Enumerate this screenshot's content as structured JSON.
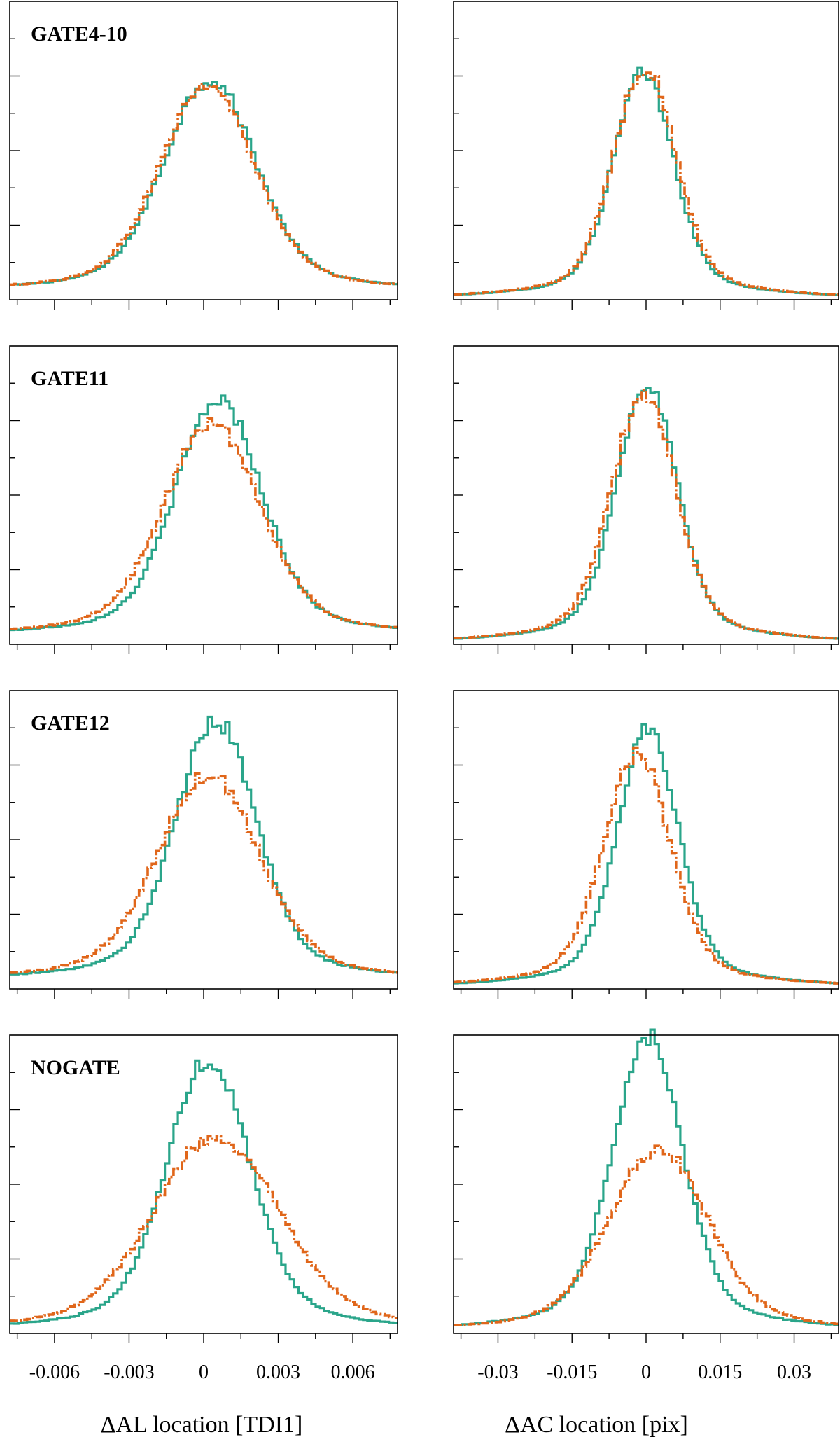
{
  "figure": {
    "xlabel_left": "ΔAL location [TDI1]",
    "xlabel_right": "ΔAC location [pix]",
    "colors": {
      "solid": "#2aa58a",
      "dashed": "#e0661a"
    }
  },
  "chart_data": [
    {
      "type": "line",
      "title": "GATE4-10",
      "column": "left",
      "xlim": [
        -0.0078,
        0.0078
      ],
      "ylim": [
        0,
        1.0
      ],
      "xticks": [
        -0.006,
        -0.003,
        0,
        0.003,
        0.006
      ],
      "xticklabels": [
        "-0.006",
        "-0.003",
        "0",
        "0.003",
        "0.006"
      ],
      "series": [
        {
          "name": "solid",
          "sigma": 0.00175,
          "mu": 0.00025,
          "peak": 0.72,
          "floor": 0.02
        },
        {
          "name": "dashed",
          "sigma": 0.0018,
          "mu": 0.00015,
          "peak": 0.7,
          "floor": 0.02
        }
      ]
    },
    {
      "type": "line",
      "title": "",
      "column": "right",
      "xlim": [
        -0.039,
        0.039
      ],
      "ylim": [
        0,
        1.0
      ],
      "xticks": [
        -0.03,
        -0.015,
        0,
        0.015,
        0.03
      ],
      "xticklabels": [
        "-0.03",
        "-0.015",
        "0",
        "0.015",
        "0.03"
      ],
      "series": [
        {
          "name": "solid",
          "sigma": 0.0058,
          "mu": -0.0005,
          "peak": 0.76,
          "floor": 0.0
        },
        {
          "name": "dashed",
          "sigma": 0.006,
          "mu": -0.0003,
          "peak": 0.78,
          "floor": 0.0
        }
      ]
    },
    {
      "type": "line",
      "title": "GATE11",
      "column": "left",
      "xlim": [
        -0.0078,
        0.0078
      ],
      "ylim": [
        0,
        1.0
      ],
      "xticks": [
        -0.006,
        -0.003,
        0,
        0.003,
        0.006
      ],
      "xticklabels": [
        "-0.006",
        "-0.003",
        "0",
        "0.003",
        "0.006"
      ],
      "series": [
        {
          "name": "solid",
          "sigma": 0.00165,
          "mu": 0.0006,
          "peak": 0.8,
          "floor": 0.02
        },
        {
          "name": "dashed",
          "sigma": 0.00185,
          "mu": 0.00035,
          "peak": 0.72,
          "floor": 0.02
        }
      ]
    },
    {
      "type": "line",
      "title": "",
      "column": "right",
      "xlim": [
        -0.039,
        0.039
      ],
      "ylim": [
        0,
        1.0
      ],
      "xticks": [
        -0.03,
        -0.015,
        0,
        0.015,
        0.03
      ],
      "xticklabels": [
        "-0.03",
        "-0.015",
        "0",
        "0.015",
        "0.03"
      ],
      "series": [
        {
          "name": "solid",
          "sigma": 0.0058,
          "mu": 0.0001,
          "peak": 0.88,
          "floor": 0.0
        },
        {
          "name": "dashed",
          "sigma": 0.0062,
          "mu": -0.0005,
          "peak": 0.84,
          "floor": 0.0
        }
      ]
    },
    {
      "type": "line",
      "title": "GATE12",
      "column": "left",
      "xlim": [
        -0.0078,
        0.0078
      ],
      "ylim": [
        0,
        1.0
      ],
      "xticks": [
        -0.006,
        -0.003,
        0,
        0.003,
        0.006
      ],
      "xticklabels": [
        "-0.006",
        "-0.003",
        "0",
        "0.003",
        "0.006"
      ],
      "series": [
        {
          "name": "solid",
          "sigma": 0.00155,
          "mu": 0.0005,
          "peak": 0.88,
          "floor": 0.02
        },
        {
          "name": "dashed",
          "sigma": 0.00195,
          "mu": 0.0002,
          "peak": 0.7,
          "floor": 0.02
        }
      ]
    },
    {
      "type": "line",
      "title": "",
      "column": "right",
      "xlim": [
        -0.039,
        0.039
      ],
      "ylim": [
        0,
        1.0
      ],
      "xticks": [
        -0.03,
        -0.015,
        0,
        0.015,
        0.03
      ],
      "xticklabels": [
        "-0.03",
        "-0.015",
        "0",
        "0.015",
        "0.03"
      ],
      "series": [
        {
          "name": "solid",
          "sigma": 0.0058,
          "mu": 0.0004,
          "peak": 0.88,
          "floor": 0.0
        },
        {
          "name": "dashed",
          "sigma": 0.0065,
          "mu": -0.0018,
          "peak": 0.79,
          "floor": 0.0
        }
      ]
    },
    {
      "type": "line",
      "title": "NOGATE",
      "column": "left",
      "xlim": [
        -0.0078,
        0.0078
      ],
      "ylim": [
        0,
        1.0
      ],
      "xticks": [
        -0.006,
        -0.003,
        0,
        0.003,
        0.006
      ],
      "xticklabels": [
        "-0.006",
        "-0.003",
        "0",
        "0.003",
        "0.006"
      ],
      "series": [
        {
          "name": "solid",
          "sigma": 0.0016,
          "mu": 0.0002,
          "peak": 0.92,
          "floor": 0.0
        },
        {
          "name": "dashed",
          "sigma": 0.0024,
          "mu": 0.0005,
          "peak": 0.66,
          "floor": 0.0
        }
      ]
    },
    {
      "type": "line",
      "title": "",
      "column": "right",
      "xlim": [
        -0.039,
        0.039
      ],
      "ylim": [
        0,
        1.0
      ],
      "xticks": [
        -0.03,
        -0.015,
        0,
        0.015,
        0.03
      ],
      "xticklabels": [
        "-0.03",
        "-0.015",
        "0",
        "0.015",
        "0.03"
      ],
      "series": [
        {
          "name": "solid",
          "sigma": 0.0068,
          "mu": 0.0003,
          "peak": 1.0,
          "floor": 0.0
        },
        {
          "name": "dashed",
          "sigma": 0.0095,
          "mu": 0.0025,
          "peak": 0.62,
          "floor": 0.0
        }
      ]
    }
  ]
}
